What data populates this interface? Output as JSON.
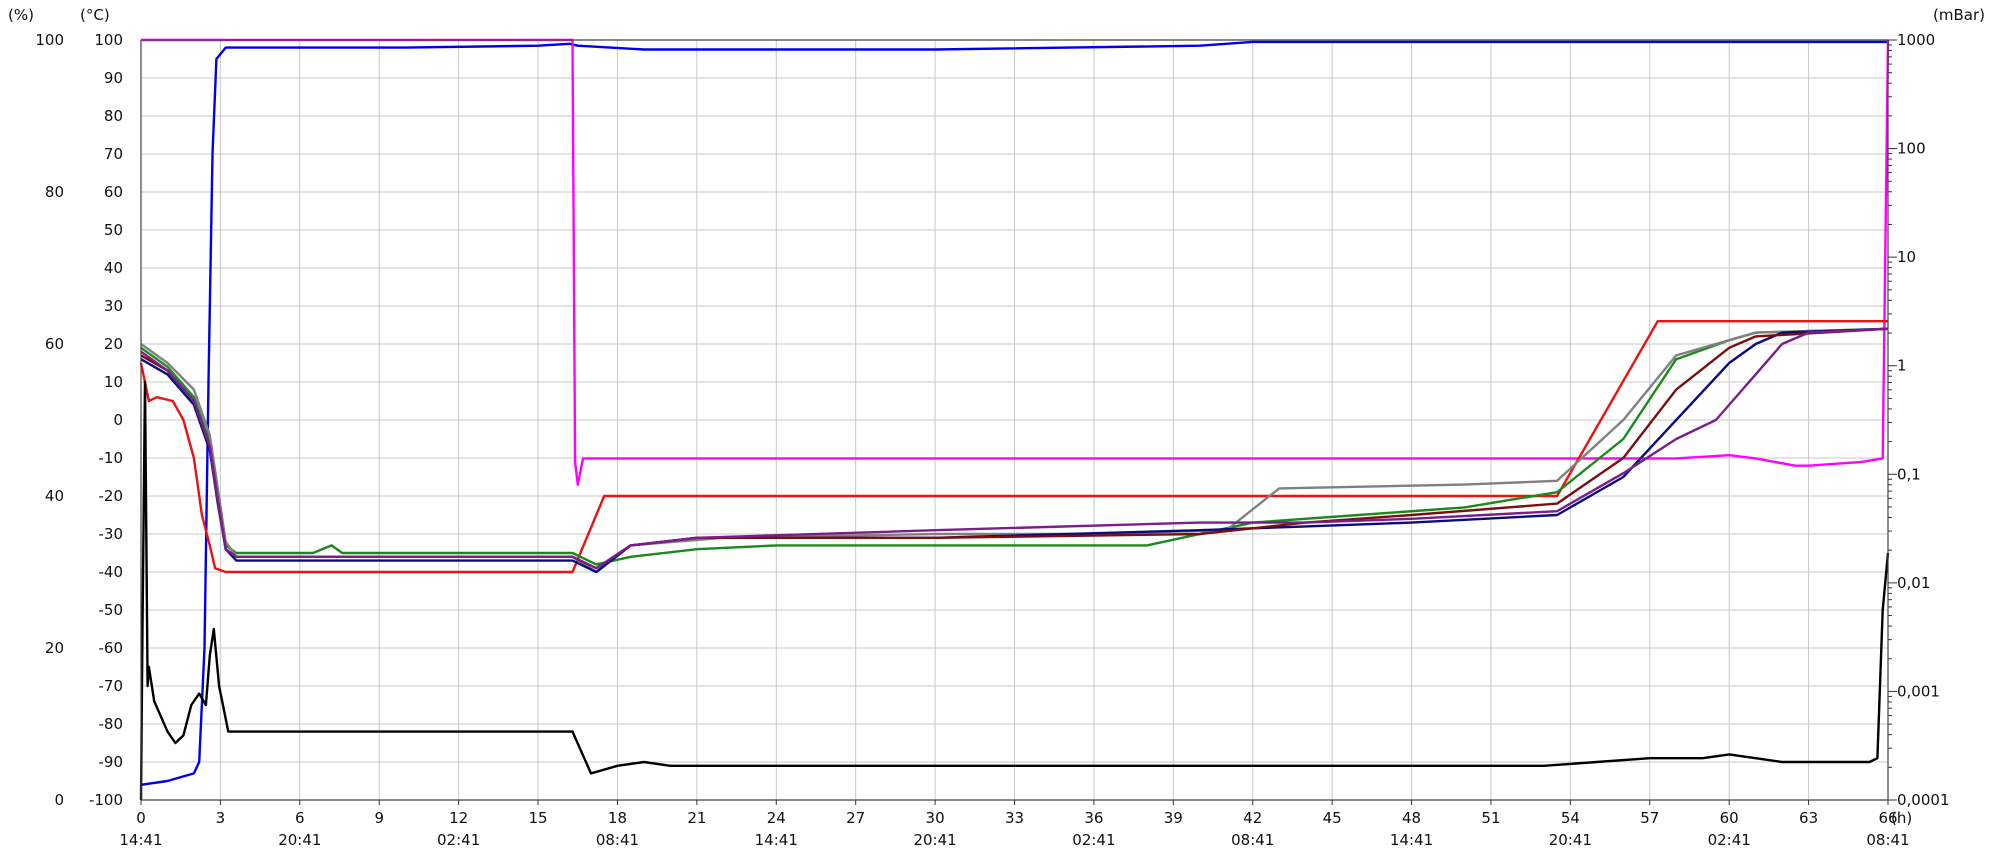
{
  "axes": {
    "left_pct_unit": "(%)",
    "left_temp_unit": "(°C)",
    "right_unit": "(mBar)",
    "x_unit": "(h)"
  },
  "chart_data": {
    "type": "line",
    "grid": true,
    "x_range": [
      0,
      66
    ],
    "x_ticks": [
      0,
      3,
      6,
      9,
      12,
      15,
      18,
      21,
      24,
      27,
      30,
      33,
      36,
      39,
      42,
      45,
      48,
      51,
      54,
      57,
      60,
      63,
      66
    ],
    "x_tick_labels": [
      "0",
      "3",
      "6",
      "9",
      "12",
      "15",
      "18",
      "21",
      "24",
      "27",
      "30",
      "33",
      "36",
      "39",
      "42",
      "45",
      "48",
      "51",
      "54",
      "57",
      "60",
      "63",
      "66"
    ],
    "x_time_labels": [
      "14:41",
      "20:41",
      "02:41",
      "08:41",
      "14:41",
      "20:41",
      "02:41",
      "08:41",
      "14:41",
      "20:41",
      "02:41",
      "08:41"
    ],
    "y_temp_range": [
      -100,
      100
    ],
    "y_temp_ticks": [
      "100",
      "90",
      "80",
      "70",
      "60",
      "50",
      "40",
      "30",
      "20",
      "10",
      "0",
      "-10",
      "-20",
      "-30",
      "-40",
      "-50",
      "-60",
      "-70",
      "-80",
      "-90",
      "-100"
    ],
    "y_pct_labels": [
      {
        "value": "100",
        "at_temp": 100
      },
      {
        "value": "80",
        "at_temp": 60
      },
      {
        "value": "60",
        "at_temp": 20
      },
      {
        "value": "40",
        "at_temp": -20
      },
      {
        "value": "20",
        "at_temp": -60
      },
      {
        "value": "0",
        "at_temp": -100
      }
    ],
    "y_pressure_scale": "log",
    "y_pressure_range": [
      0.0001,
      1000
    ],
    "y_pressure_ticks": [
      {
        "label": "1000",
        "value": 1000
      },
      {
        "label": "100",
        "value": 100
      },
      {
        "label": "10",
        "value": 10
      },
      {
        "label": "1",
        "value": 1
      },
      {
        "label": "0,1",
        "value": 0.1
      },
      {
        "label": "0,01",
        "value": 0.01
      },
      {
        "label": "0,001",
        "value": 0.001
      },
      {
        "label": "0,0001",
        "value": 0.0001
      }
    ],
    "series": [
      {
        "color": "#0000ee",
        "axis": "pct",
        "points": [
          [
            0,
            -96
          ],
          [
            1,
            -95
          ],
          [
            2,
            -93
          ],
          [
            2.2,
            -90
          ],
          [
            2.4,
            -60
          ],
          [
            2.55,
            10
          ],
          [
            2.7,
            70
          ],
          [
            2.85,
            95
          ],
          [
            3.2,
            98
          ],
          [
            5,
            98
          ],
          [
            10,
            98
          ],
          [
            15,
            98.5
          ],
          [
            16.2,
            99
          ],
          [
            16.5,
            98.5
          ],
          [
            19,
            97.5
          ],
          [
            30,
            97.5
          ],
          [
            40,
            98.5
          ],
          [
            42,
            99.5
          ],
          [
            66,
            99.5
          ]
        ]
      },
      {
        "color": "#ff00ff",
        "axis": "pressure",
        "points": [
          [
            0,
            1000
          ],
          [
            16,
            1000
          ],
          [
            16.3,
            1000
          ],
          [
            16.4,
            0.13
          ],
          [
            16.5,
            0.08
          ],
          [
            16.7,
            0.14
          ],
          [
            40,
            0.14
          ],
          [
            58,
            0.14
          ],
          [
            60,
            0.15
          ],
          [
            61,
            0.14
          ],
          [
            62.5,
            0.12
          ],
          [
            63,
            0.12
          ],
          [
            65,
            0.13
          ],
          [
            65.8,
            0.14
          ],
          [
            66,
            1000
          ]
        ]
      },
      {
        "color": "#ee1111",
        "axis": "temp",
        "points": [
          [
            0,
            15
          ],
          [
            0.3,
            5
          ],
          [
            0.6,
            6
          ],
          [
            1.2,
            5
          ],
          [
            1.6,
            0
          ],
          [
            2,
            -10
          ],
          [
            2.3,
            -25
          ],
          [
            2.6,
            -33
          ],
          [
            2.8,
            -39
          ],
          [
            3.2,
            -40
          ],
          [
            16.3,
            -40
          ],
          [
            17.5,
            -20
          ],
          [
            26,
            -20
          ],
          [
            40,
            -20
          ],
          [
            53.5,
            -20
          ],
          [
            57.3,
            26
          ],
          [
            66,
            26
          ]
        ]
      },
      {
        "color": "#1a8a1a",
        "axis": "temp",
        "points": [
          [
            0,
            19
          ],
          [
            1,
            14
          ],
          [
            2,
            6
          ],
          [
            2.6,
            -6
          ],
          [
            2.9,
            -20
          ],
          [
            3.2,
            -33
          ],
          [
            3.6,
            -35
          ],
          [
            6.5,
            -35
          ],
          [
            7.2,
            -33
          ],
          [
            7.6,
            -35
          ],
          [
            16.3,
            -35
          ],
          [
            17.2,
            -38
          ],
          [
            18.5,
            -36
          ],
          [
            21,
            -34
          ],
          [
            24,
            -33
          ],
          [
            38,
            -33
          ],
          [
            42,
            -27
          ],
          [
            46,
            -25
          ],
          [
            50,
            -23
          ],
          [
            53.5,
            -19
          ],
          [
            56,
            -5
          ],
          [
            58,
            16
          ],
          [
            60,
            21
          ],
          [
            61,
            23
          ],
          [
            66,
            24
          ]
        ]
      },
      {
        "color": "#808080",
        "axis": "temp",
        "points": [
          [
            0,
            20
          ],
          [
            1,
            15
          ],
          [
            2,
            8
          ],
          [
            2.6,
            -4
          ],
          [
            2.9,
            -18
          ],
          [
            3.2,
            -32
          ],
          [
            3.6,
            -36
          ],
          [
            16.3,
            -36
          ],
          [
            17.2,
            -40
          ],
          [
            18.5,
            -33
          ],
          [
            22,
            -31
          ],
          [
            30,
            -30
          ],
          [
            36,
            -30
          ],
          [
            41,
            -29
          ],
          [
            43,
            -18
          ],
          [
            50,
            -17
          ],
          [
            53.5,
            -16
          ],
          [
            56,
            0
          ],
          [
            58,
            17
          ],
          [
            60,
            21
          ],
          [
            61,
            23
          ],
          [
            66,
            24
          ]
        ]
      },
      {
        "color": "#0b0b80",
        "axis": "temp",
        "points": [
          [
            0,
            16
          ],
          [
            1,
            12
          ],
          [
            2,
            4
          ],
          [
            2.6,
            -8
          ],
          [
            2.9,
            -22
          ],
          [
            3.2,
            -34
          ],
          [
            3.6,
            -37
          ],
          [
            16.3,
            -37
          ],
          [
            17.2,
            -40
          ],
          [
            18.5,
            -33
          ],
          [
            21,
            -31
          ],
          [
            30,
            -31
          ],
          [
            40,
            -29
          ],
          [
            44,
            -28
          ],
          [
            48,
            -27
          ],
          [
            53.5,
            -25
          ],
          [
            56,
            -15
          ],
          [
            58,
            0
          ],
          [
            60,
            15
          ],
          [
            61,
            20
          ],
          [
            62,
            23
          ],
          [
            66,
            24
          ]
        ]
      },
      {
        "color": "#7a0f0f",
        "axis": "temp",
        "points": [
          [
            0,
            17
          ],
          [
            1,
            13
          ],
          [
            2,
            5
          ],
          [
            2.6,
            -7
          ],
          [
            2.9,
            -21
          ],
          [
            3.2,
            -34
          ],
          [
            3.6,
            -36
          ],
          [
            16.3,
            -36
          ],
          [
            17.2,
            -39
          ],
          [
            18.5,
            -33
          ],
          [
            21,
            -31
          ],
          [
            30,
            -31
          ],
          [
            40,
            -30
          ],
          [
            44,
            -27
          ],
          [
            48,
            -25
          ],
          [
            53.5,
            -22
          ],
          [
            56,
            -10
          ],
          [
            58,
            8
          ],
          [
            60,
            19
          ],
          [
            61,
            22
          ],
          [
            66,
            24
          ]
        ]
      },
      {
        "color": "#7a1f8a",
        "axis": "temp",
        "points": [
          [
            0,
            18
          ],
          [
            1,
            13
          ],
          [
            2,
            5
          ],
          [
            2.6,
            -7
          ],
          [
            2.9,
            -21
          ],
          [
            3.2,
            -34
          ],
          [
            3.6,
            -36
          ],
          [
            16.3,
            -36
          ],
          [
            17.2,
            -39
          ],
          [
            18.5,
            -33
          ],
          [
            21,
            -31
          ],
          [
            30,
            -29
          ],
          [
            40,
            -27
          ],
          [
            44,
            -27
          ],
          [
            48,
            -26
          ],
          [
            53.5,
            -24
          ],
          [
            56,
            -14
          ],
          [
            58,
            -5
          ],
          [
            59.5,
            0
          ],
          [
            61,
            12
          ],
          [
            62,
            20
          ],
          [
            63,
            23
          ],
          [
            66,
            24
          ]
        ]
      },
      {
        "color": "#000000",
        "axis": "pct",
        "points": [
          [
            0,
            -100
          ],
          [
            0.05,
            -60
          ],
          [
            0.15,
            10
          ],
          [
            0.25,
            -70
          ],
          [
            0.3,
            -65
          ],
          [
            0.5,
            -74
          ],
          [
            1,
            -82
          ],
          [
            1.3,
            -85
          ],
          [
            1.6,
            -83
          ],
          [
            1.9,
            -75
          ],
          [
            2.2,
            -72
          ],
          [
            2.45,
            -75
          ],
          [
            2.6,
            -62
          ],
          [
            2.75,
            -55
          ],
          [
            2.95,
            -70
          ],
          [
            3.3,
            -82
          ],
          [
            3.6,
            -82
          ],
          [
            16.3,
            -82
          ],
          [
            17,
            -93
          ],
          [
            18,
            -91
          ],
          [
            19,
            -90
          ],
          [
            20,
            -91
          ],
          [
            40,
            -91
          ],
          [
            53,
            -91
          ],
          [
            55,
            -90
          ],
          [
            57,
            -89
          ],
          [
            59,
            -89
          ],
          [
            60,
            -88
          ],
          [
            61,
            -89
          ],
          [
            62,
            -90
          ],
          [
            63,
            -90
          ],
          [
            65.3,
            -90
          ],
          [
            65.6,
            -89
          ],
          [
            65.8,
            -50
          ],
          [
            66,
            -35
          ]
        ]
      }
    ]
  }
}
